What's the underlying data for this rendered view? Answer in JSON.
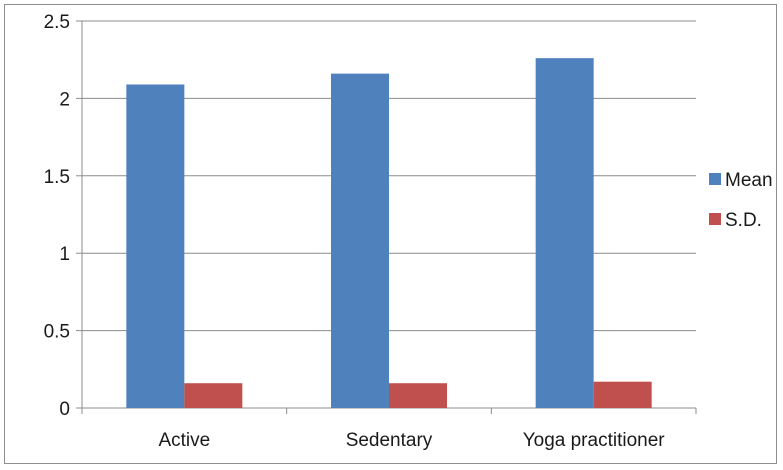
{
  "chart_data": {
    "type": "bar",
    "categories": [
      "Active",
      "Sedentary",
      "Yoga practitioner"
    ],
    "series": [
      {
        "name": "Mean",
        "values": [
          2.09,
          2.16,
          2.26
        ],
        "color": "#4f81bd"
      },
      {
        "name": "S.D.",
        "values": [
          0.16,
          0.16,
          0.17
        ],
        "color": "#c0504d"
      }
    ],
    "ylim": [
      0,
      2.5
    ],
    "yticks": [
      0,
      0.5,
      1,
      1.5,
      2,
      2.5
    ],
    "ytick_labels": [
      "0",
      "0.5",
      "1",
      "1.5",
      "2",
      "2.5"
    ],
    "grid": true,
    "legend_position": "right"
  }
}
